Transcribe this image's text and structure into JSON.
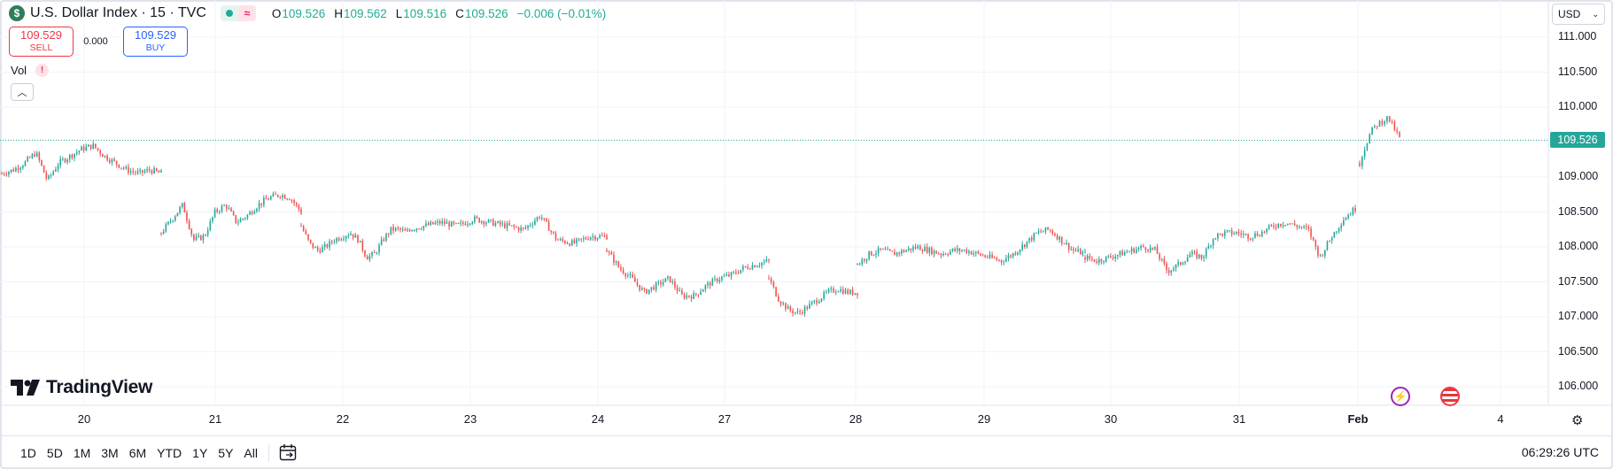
{
  "header": {
    "symbol_title": "U.S. Dollar Index · 15 · TVC",
    "logo_icon": "dollar-icon",
    "open_label": "O",
    "open_value": "109.526",
    "high_label": "H",
    "high_value": "109.562",
    "low_label": "L",
    "low_value": "109.516",
    "close_label": "C",
    "close_value": "109.526",
    "change": "−0.006 (−0.01%)"
  },
  "trade": {
    "sell_price": "109.529",
    "sell_label": "SELL",
    "spread": "0.000",
    "buy_price": "109.529",
    "buy_label": "BUY"
  },
  "indicator": {
    "vol_label": "Vol",
    "warn": "!"
  },
  "currency": {
    "value": "USD"
  },
  "last_price": "109.526",
  "brand": {
    "name": "TradingView"
  },
  "toolbar": {
    "ranges": [
      "1D",
      "5D",
      "1M",
      "3M",
      "6M",
      "YTD",
      "1Y",
      "5Y",
      "All"
    ],
    "time": "06:29:26 UTC"
  },
  "colors": {
    "up": "#26a69a",
    "down": "#ef5350",
    "last_price_line": "#26a69a",
    "grid": "#f0f3fa"
  },
  "chart_data": {
    "type": "candlestick",
    "ylim": [
      105.75,
      111.25
    ],
    "yticks": [
      "111.000",
      "110.500",
      "110.000",
      "109.526",
      "109.000",
      "108.500",
      "108.000",
      "107.500",
      "107.000",
      "106.500",
      "106.000"
    ],
    "ytick_values": [
      111.0,
      110.5,
      110.0,
      109.0,
      108.5,
      108.0,
      107.5,
      107.0,
      106.5,
      106.0
    ],
    "xticks": [
      "20",
      "21",
      "22",
      "23",
      "24",
      "27",
      "28",
      "29",
      "30",
      "31",
      "Feb",
      "4"
    ],
    "series": [
      {
        "segment": "20",
        "close_path": [
          109.05,
          109.1,
          109.2,
          109.35,
          108.95,
          109.2,
          109.3,
          109.4,
          109.45,
          109.3,
          109.2,
          109.1,
          109.05,
          109.1,
          109.05
        ]
      },
      {
        "segment": "21",
        "close_path": [
          108.2,
          108.4,
          108.6,
          108.1,
          108.15,
          108.5,
          108.6,
          108.35,
          108.45,
          108.6,
          108.7,
          108.75,
          108.7,
          108.5
        ]
      },
      {
        "segment": "22",
        "close_path": [
          108.3,
          108.05,
          107.95,
          108.0,
          108.1,
          108.15,
          108.2,
          108.1,
          107.85,
          107.9,
          108.1,
          108.25,
          108.25,
          108.2
        ]
      },
      {
        "segment": "23",
        "close_path": [
          108.25,
          108.3,
          108.35,
          108.3,
          108.4,
          108.35,
          108.3,
          108.25,
          108.45,
          108.1,
          108.05,
          108.15,
          108.15
        ]
      },
      {
        "segment": "24",
        "close_path": [
          107.95,
          107.7,
          107.55,
          107.35,
          107.45,
          107.55,
          107.3,
          107.3,
          107.45,
          107.55,
          107.6,
          107.7,
          107.75,
          107.8
        ]
      },
      {
        "segment": "27",
        "close_path": [
          107.55,
          107.25,
          107.1,
          107.05,
          107.15,
          107.25,
          107.35,
          107.4,
          107.35,
          107.35
        ]
      },
      {
        "segment": "28",
        "close_path": [
          107.75,
          107.9,
          107.95,
          107.9,
          107.95,
          108.0,
          107.95,
          107.9,
          107.95,
          107.95,
          107.9,
          107.85,
          107.8,
          107.9,
          108.05,
          108.2,
          108.25,
          108.1,
          107.95,
          107.9
        ]
      },
      {
        "segment": "30",
        "close_path": [
          107.85,
          107.8,
          107.85,
          107.9,
          107.95,
          108.0,
          107.95,
          107.65,
          107.75,
          107.9,
          107.85,
          108.15,
          108.2,
          108.2,
          108.15,
          108.2,
          108.3,
          108.35,
          108.3,
          108.25,
          107.85,
          108.15,
          108.4,
          108.55
        ]
      },
      {
        "segment": "Feb",
        "close_path": [
          109.2,
          109.45,
          109.65,
          109.75,
          109.8,
          109.85,
          109.7,
          109.55
        ]
      }
    ]
  }
}
